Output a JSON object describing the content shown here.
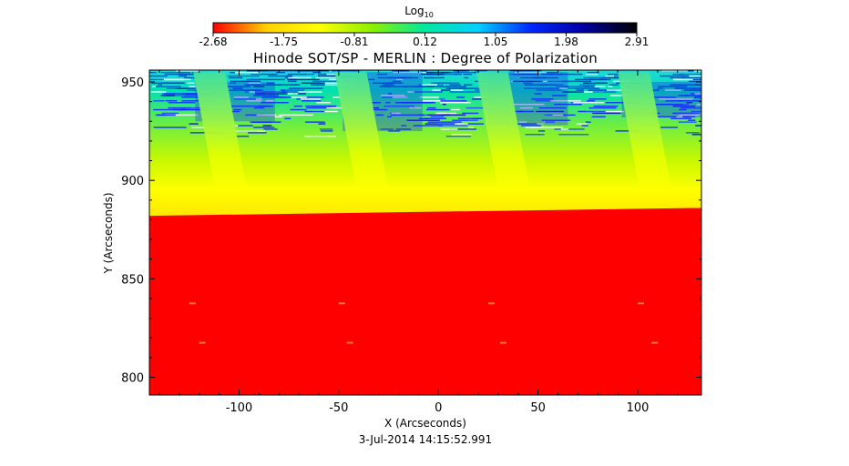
{
  "chart_data": {
    "type": "heatmap",
    "title": "Hinode SOT/SP - MERLIN : Degree of Polarization",
    "xlabel": "X (Arcseconds)",
    "ylabel": "Y (Arcseconds)",
    "timestamp": "3-Jul-2014 14:15:52.991",
    "x_ticks": [
      -100,
      -50,
      0,
      50,
      100
    ],
    "y_ticks": [
      800,
      850,
      900,
      950
    ],
    "xlim": [
      -145,
      132
    ],
    "ylim": [
      791,
      956
    ],
    "colorbar": {
      "title_main": "Log",
      "title_sub": "10",
      "ticks": [
        "-2.68",
        "-1.75",
        "-0.81",
        "0.12",
        "1.05",
        "1.98",
        "2.91"
      ],
      "range": [
        -2.68,
        2.91
      ],
      "colormap": [
        "#ff0000",
        "#ffd000",
        "#ffff00",
        "#8cf000",
        "#00e8a0",
        "#00d0ff",
        "#0028ff",
        "#0000a0",
        "#000000"
      ]
    },
    "limb_y": 884,
    "stripe_centers_x": [
      -115,
      -44,
      27,
      98
    ],
    "grid": false
  }
}
